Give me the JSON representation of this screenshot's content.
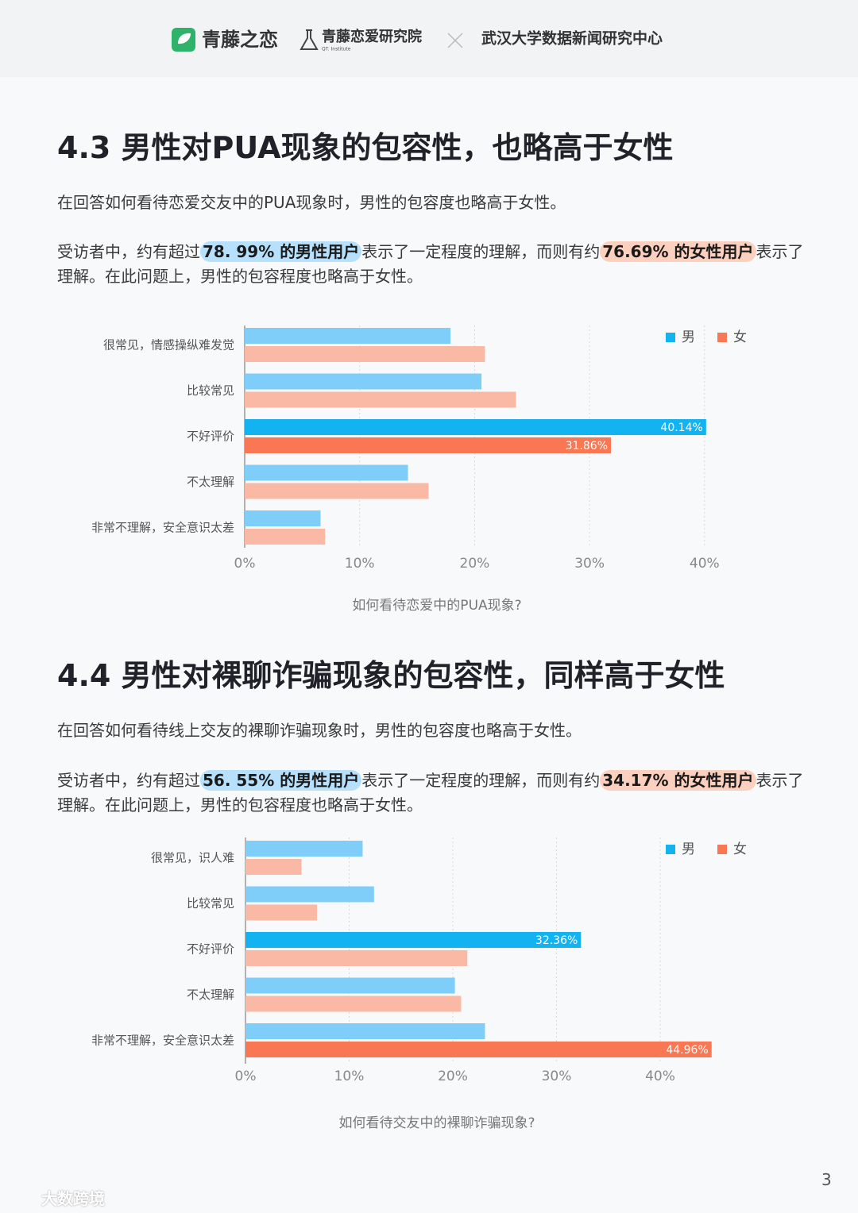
{
  "header": {
    "brand": "青藤之恋",
    "institute": "青藤恋爱研究院",
    "institute_en": "QT. Institute",
    "partner": "武汉大学数据新闻研究中心"
  },
  "sections": [
    {
      "heading": "4.3  男性对PUA现象的包容性，也略高于女性",
      "paragraphs": [
        [
          {
            "text": "在回答如何看待恋爱交友中的PUA现象时，男性的包容度也略高于女性。"
          }
        ],
        [
          {
            "text": "受访者中，约有超过"
          },
          {
            "text": "78. 99% 的男性用户",
            "highlight": "#b6e0fb"
          },
          {
            "text": "表示了一定程度的理解，而则有约"
          },
          {
            "text": "76.69% 的女性用户",
            "highlight": "#fbd0bf"
          },
          {
            "text": "表示了理解。在此问题上，男性的包容程度也略高于女性。"
          }
        ]
      ],
      "chart": {
        "type": "bar",
        "orientation": "horizontal",
        "title": "如何看待恋爱中的PUA现象?",
        "categories": [
          "很常见，情感操纵难发觉",
          "比较常见",
          "不好评价",
          "不太理解",
          "非常不理解，安全意识太差"
        ],
        "series": [
          {
            "name": "男",
            "color": "#7fcefa",
            "highlight_color": "#12b3f0",
            "values": [
              17.9,
              20.6,
              40.14,
              14.2,
              6.6
            ],
            "value_labels": [
              null,
              null,
              "40.14%",
              null,
              null
            ]
          },
          {
            "name": "女",
            "color": "#f9b9a4",
            "highlight_color": "#f97752",
            "values": [
              20.9,
              23.6,
              31.86,
              16.0,
              7.0
            ],
            "value_labels": [
              null,
              null,
              "31.86%",
              null,
              null
            ]
          }
        ],
        "xlim": [
          0,
          45
        ],
        "xticks": [
          {
            "value": 0,
            "label": "0%"
          },
          {
            "value": 10,
            "label": "10%"
          },
          {
            "value": 20,
            "label": "20%"
          },
          {
            "value": 30,
            "label": "30%"
          },
          {
            "value": 40,
            "label": "40%"
          }
        ],
        "grid": true,
        "legend": "top-right"
      }
    },
    {
      "heading": "4.4  男性对裸聊诈骗现象的包容性，同样高于女性",
      "paragraphs": [
        [
          {
            "text": "在回答如何看待线上交友的裸聊诈骗现象时，男性的包容度也略高于女性。"
          }
        ],
        [
          {
            "text": "受访者中，约有超过"
          },
          {
            "text": "56. 55% 的男性用户",
            "highlight": "#b6e0fb"
          },
          {
            "text": "表示了一定程度的理解，而则有约"
          },
          {
            "text": "34.17% 的女性用户",
            "highlight": "#fbd0bf"
          },
          {
            "text": "表示了理解。在此问题上，男性的包容程度也略高于女性。"
          }
        ]
      ],
      "chart": {
        "type": "bar",
        "orientation": "horizontal",
        "title": "如何看待交友中的裸聊诈骗现象?",
        "categories": [
          "很常见，识人难",
          "比较常见",
          "不好评价",
          "不太理解",
          "非常不理解，安全意识太差"
        ],
        "series": [
          {
            "name": "男",
            "color": "#7fcefa",
            "highlight_color": "#12b3f0",
            "values": [
              11.3,
              12.4,
              32.36,
              20.2,
              23.1
            ],
            "value_labels": [
              null,
              null,
              "32.36%",
              null,
              null
            ]
          },
          {
            "name": "女",
            "color": "#f9b9a4",
            "highlight_color": "#f97752",
            "values": [
              5.4,
              6.9,
              21.4,
              20.8,
              44.96
            ],
            "value_labels": [
              null,
              null,
              null,
              null,
              "44.96%"
            ]
          }
        ],
        "xlim": [
          0,
          45
        ],
        "xticks": [
          {
            "value": 0,
            "label": "0%"
          },
          {
            "value": 10,
            "label": "10%"
          },
          {
            "value": 20,
            "label": "20%"
          },
          {
            "value": 30,
            "label": "30%"
          },
          {
            "value": 40,
            "label": "40%"
          }
        ],
        "grid": true,
        "legend": "top-right"
      }
    }
  ],
  "page_number": "3",
  "watermark": "大数跨境"
}
